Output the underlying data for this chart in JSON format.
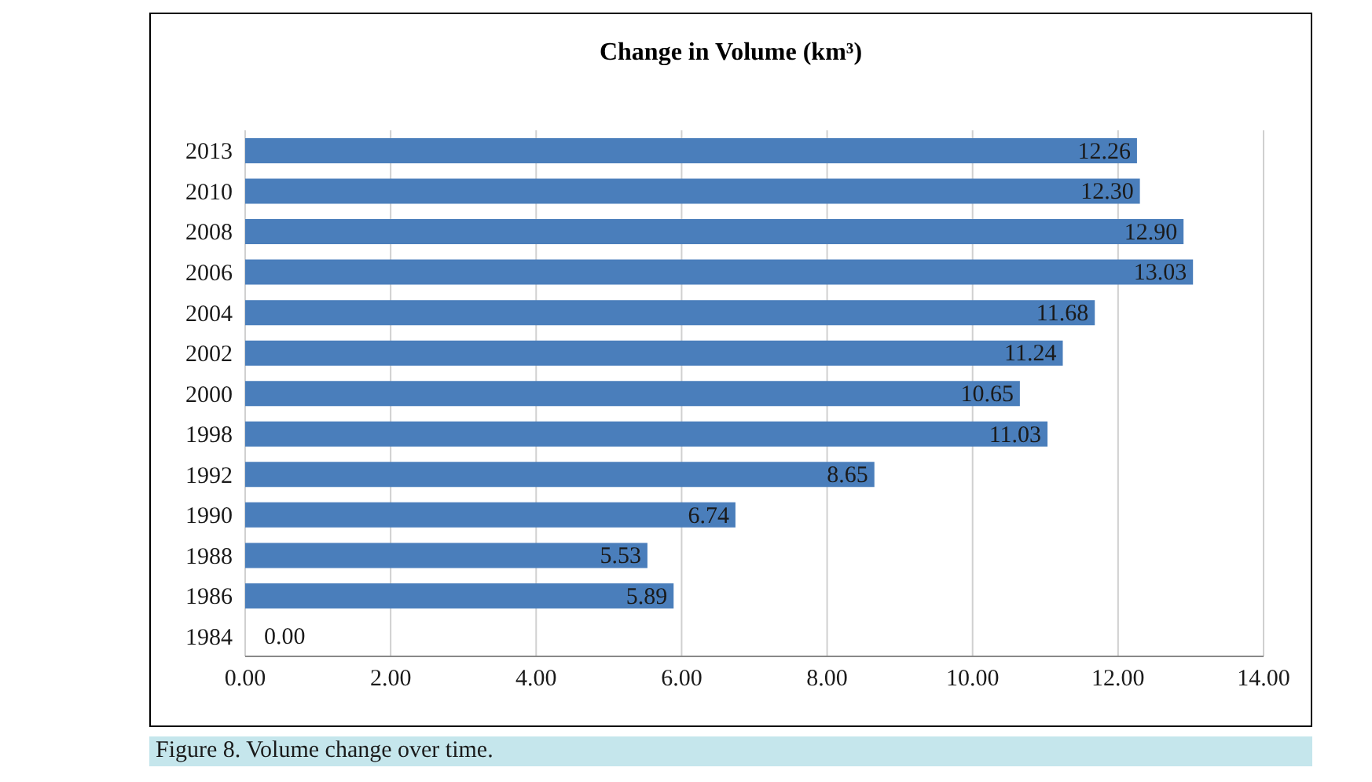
{
  "chart_data": {
    "type": "bar",
    "orientation": "horizontal",
    "title": "Change in Volume (km³)",
    "categories": [
      "2013",
      "2010",
      "2008",
      "2006",
      "2004",
      "2002",
      "2000",
      "1998",
      "1992",
      "1990",
      "1988",
      "1986",
      "1984"
    ],
    "values": [
      12.26,
      12.3,
      12.9,
      13.03,
      11.68,
      11.24,
      10.65,
      11.03,
      8.65,
      6.74,
      5.53,
      5.89,
      0
    ],
    "value_labels": [
      "12.26",
      "12.30",
      "12.90",
      "13.03",
      "11.68",
      "11.24",
      "10.65",
      "11.03",
      "8.65",
      "6.74",
      "5.53",
      "5.89",
      "0.00"
    ],
    "color": "#4a7ebb",
    "xlim": [
      0,
      14
    ],
    "xticks": [
      {
        "value": 0,
        "label": "0.00"
      },
      {
        "value": 2,
        "label": "2.00"
      },
      {
        "value": 4,
        "label": "4.00"
      },
      {
        "value": 6,
        "label": "6.00"
      },
      {
        "value": 8,
        "label": "8.00"
      },
      {
        "value": 10,
        "label": "10.00"
      },
      {
        "value": 12,
        "label": "12.00"
      },
      {
        "value": 14,
        "label": "14.00"
      }
    ],
    "grid": "x",
    "legend": false,
    "annotations": [
      "Figure 8. Volume change over time."
    ]
  }
}
